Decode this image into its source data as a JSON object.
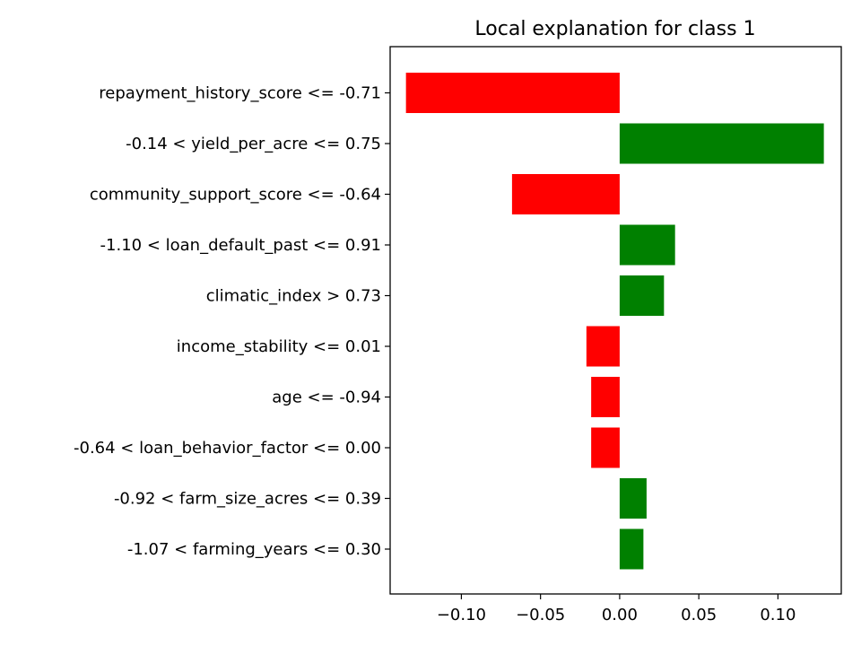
{
  "chart_data": {
    "type": "bar",
    "orientation": "horizontal",
    "title": "Local explanation for class 1",
    "xlabel": "",
    "ylabel": "",
    "xlim": [
      -0.145,
      0.14
    ],
    "grid": false,
    "legend": "none",
    "categories": [
      "repayment_history_score <= -0.71",
      "-0.14 < yield_per_acre <= 0.75",
      "community_support_score <= -0.64",
      "-1.10 < loan_default_past <= 0.91",
      "climatic_index > 0.73",
      "income_stability <= 0.01",
      "age <= -0.94",
      "-0.64 < loan_behavior_factor <= 0.00",
      "-0.92 < farm_size_acres <= 0.39",
      "-1.07 < farming_years <= 0.30"
    ],
    "values": [
      -0.135,
      0.129,
      -0.068,
      0.035,
      0.028,
      -0.021,
      -0.018,
      -0.018,
      0.017,
      0.015
    ],
    "x_ticks": [
      -0.1,
      -0.05,
      0.0,
      0.05,
      0.1
    ],
    "x_tick_labels": [
      "−0.10",
      "−0.05",
      "0.00",
      "0.05",
      "0.10"
    ],
    "colors": {
      "positive": "#008000",
      "negative": "#ff0000",
      "axes": "#000000",
      "background": "#ffffff"
    }
  }
}
